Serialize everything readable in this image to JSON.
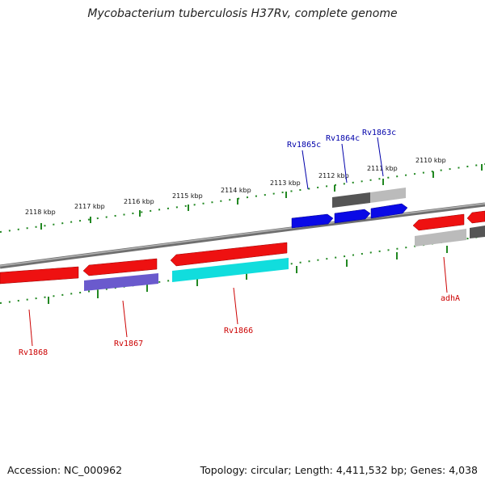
{
  "title": "Mycobacterium tuberculosis H37Rv, complete genome",
  "footer": {
    "accession": "Accession: NC_000962",
    "summary": "Topology: circular; Length: 4,411,532 bp; Genes: 4,038"
  },
  "scale_labels": [
    "2118 kbp",
    "2117 kbp",
    "2116 kbp",
    "2115 kbp",
    "2114 kbp",
    "2113 kbp",
    "2112 kbp",
    "2111 kbp",
    "2110 kbp"
  ],
  "genes": [
    {
      "name": "Rv1868",
      "strand": "reverse"
    },
    {
      "name": "Rv1867",
      "strand": "reverse"
    },
    {
      "name": "Rv1866",
      "strand": "reverse"
    },
    {
      "name": "Rv1865c",
      "strand": "forward"
    },
    {
      "name": "Rv1864c",
      "strand": "forward"
    },
    {
      "name": "Rv1863c",
      "strand": "forward"
    },
    {
      "name": "adhA",
      "strand": "reverse"
    }
  ],
  "colors": {
    "forward_label": "#0000aa",
    "reverse_label": "#cc0000",
    "scale": "#228822",
    "backbone": "#7a7a7a",
    "red": "#ee1111",
    "blue": "#0a0ae6",
    "cyan": "#11dddd",
    "purple": "#6a5acd",
    "dark_gray": "#555555",
    "light_gray": "#bbbbbb"
  }
}
